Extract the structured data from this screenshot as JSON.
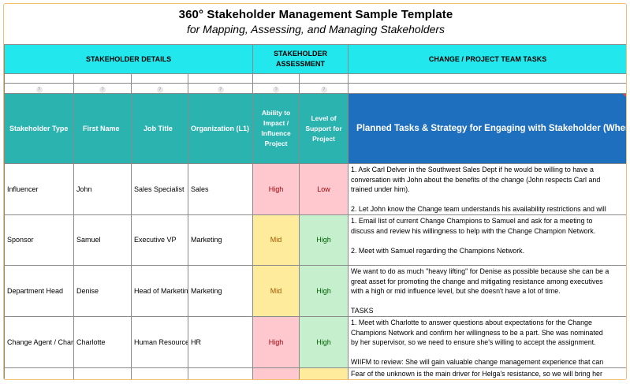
{
  "title": "360° Stakeholder Management Sample Template",
  "subtitle": "for Mapping, Assessing, and Managing Stakeholders",
  "sections": {
    "details": "STAKEHOLDER DETAILS",
    "assessment_line1": "STAKEHOLDER",
    "assessment_line2": "ASSESSMENT",
    "tasks": "CHANGE / PROJECT TEAM TASKS"
  },
  "hint_symbol": "?",
  "columns": {
    "type": "Stakeholder Type",
    "first_name": "First Name",
    "job_title": "Job Title",
    "organization": "Organization (L1)",
    "impact_line1": "Ability to",
    "impact_line2": "Impact /",
    "impact_line3": "Influence",
    "impact_line4": "Project",
    "support_line1": "Level of",
    "support_line2": "Support for",
    "support_line3": "Project",
    "tasks": "Planned Tasks & Strategy for Engaging with Stakeholder (Where Applicable)"
  },
  "rows": [
    {
      "type": "Influencer",
      "first_name": "John",
      "job_title": "Sales Specialist",
      "organization": "Sales",
      "impact": "High",
      "support": "Low",
      "notes": [
        "1. Ask Carl Delver in the Southwest Sales Dept if he would be willing to have a",
        "conversation with John about the benefits of the change (John respects Carl and",
        "trained under him).",
        "",
        "2. Let John know the Change team understands his availability restrictions and will"
      ]
    },
    {
      "type": "Sponsor",
      "first_name": "Samuel",
      "job_title": "Executive VP",
      "organization": "Marketing",
      "impact": "Mid",
      "support": "High",
      "notes": [
        "1. Email list of current Change Champions to Samuel and ask for a meeting to",
        "discuss and review his willingness to help with the Change Champion Network.",
        "",
        "2. Meet with Samuel regarding the Champions Network."
      ]
    },
    {
      "type": "Department Head",
      "first_name": "Denise",
      "job_title": "Head of Marketing",
      "organization": "Marketing",
      "impact": "Mid",
      "support": "High",
      "notes": [
        "We want to do as much \"heavy lifting\" for Denise as possible because she can be a",
        "great asset for promoting the change and mitigating resistance among executives",
        "with a high or mid influence level, but she doesn't have a lot of time.",
        "",
        "TASKS"
      ]
    },
    {
      "type": "Change Agent / Champion",
      "first_name": "Charlotte",
      "job_title": "Human Resources",
      "organization": "HR",
      "impact": "High",
      "support": "High",
      "notes": [
        "1. Meet with Charlotte to answer questions about expectations for the Change",
        "Champions Network and confirm her willingness to be a part. She was nominated",
        "by her supervisor, so we need to ensure she's willing to accept the assignment.",
        "",
        "WIIFM to review: She will gain valuable change management experience that can"
      ]
    },
    {
      "type": "",
      "first_name": "",
      "job_title": "",
      "organization": "",
      "impact": "",
      "support": "",
      "notes": [
        "Fear of the unknown is the main driver for Helga's resistance, so we will bring her"
      ]
    }
  ],
  "colors": {
    "section_bg": "#22e8ee",
    "header_bg": "#2bb3b0",
    "tasks_header_bg": "#1f6fbf",
    "high_risk_bg": "#ffc7ce",
    "mid_bg": "#ffeb9c",
    "positive_bg": "#c6efce"
  }
}
